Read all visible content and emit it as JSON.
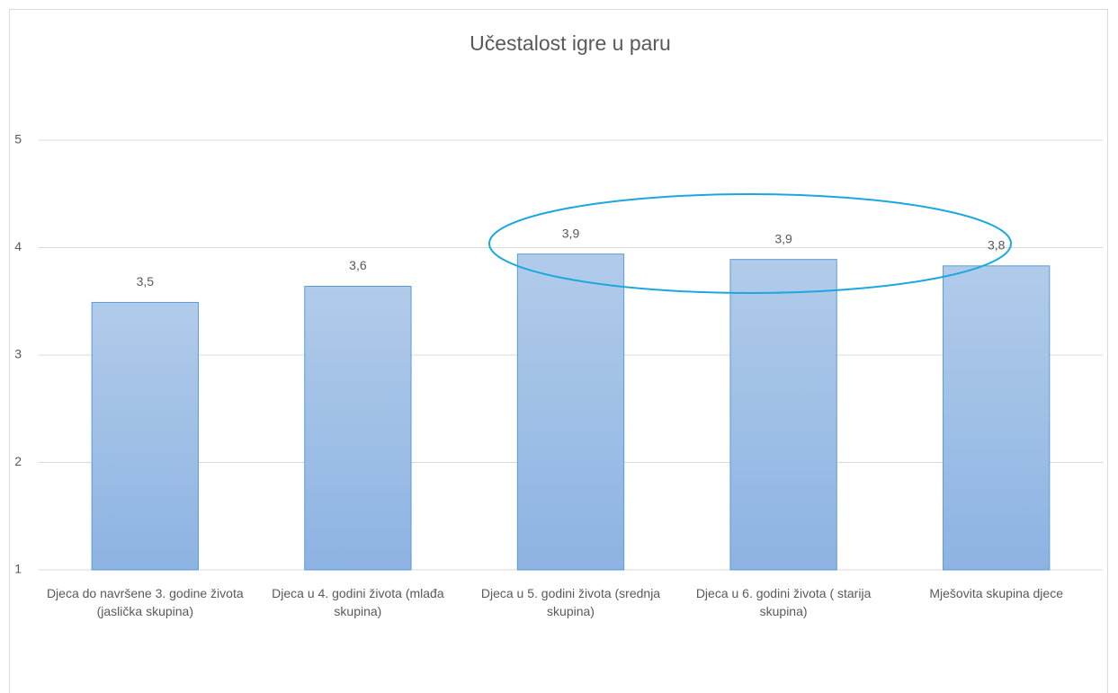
{
  "chart_data": {
    "type": "bar",
    "title": "Učestalost igre u paru",
    "categories": [
      "Djeca do navršene 3. godine života (jaslička skupina)",
      "Djeca u 4. godini života (mlađa skupina)",
      "Djeca u 5. godini života (srednja skupina)",
      "Djeca u 6. godini života ( starija skupina)",
      "Mješovita skupina djece"
    ],
    "values": [
      3.49,
      3.64,
      3.94,
      3.89,
      3.83
    ],
    "value_labels": [
      "3,5",
      "3,6",
      "3,9",
      "3,9",
      "3,8"
    ],
    "color": "#5b9bd5",
    "ylim": [
      1,
      5
    ],
    "yticks": [
      1,
      2,
      3,
      4,
      5
    ],
    "grid": true
  }
}
